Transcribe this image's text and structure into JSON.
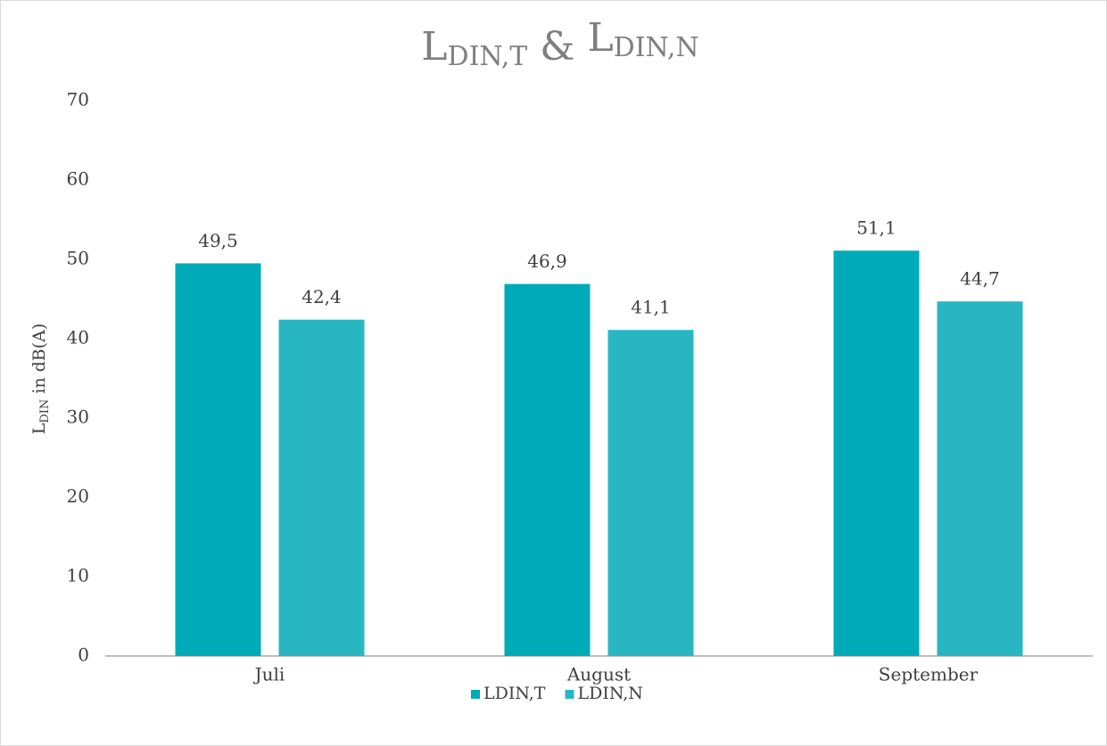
{
  "chart_data": {
    "type": "bar",
    "title": [
      "L",
      "DIN,T",
      " & ",
      "L",
      "DIN,N"
    ],
    "y_label": [
      "L",
      "DIN",
      " in dB(A)"
    ],
    "categories": [
      "Juli",
      "August",
      "September"
    ],
    "series": [
      {
        "name": "LDIN,T",
        "color": "#00abb9",
        "values": [
          49.5,
          46.9,
          51.1
        ],
        "value_labels": [
          "49,5",
          "46,9",
          "51,1"
        ]
      },
      {
        "name": "LDIN,N",
        "color": "#28b7c2",
        "values": [
          42.4,
          41.1,
          44.7
        ],
        "value_labels": [
          "42,4",
          "41,1",
          "44,7"
        ]
      }
    ],
    "ylim": [
      0,
      70
    ],
    "yticks": [
      0,
      10,
      20,
      30,
      40,
      50,
      60,
      70
    ],
    "grid": false,
    "legend": "bottom"
  }
}
